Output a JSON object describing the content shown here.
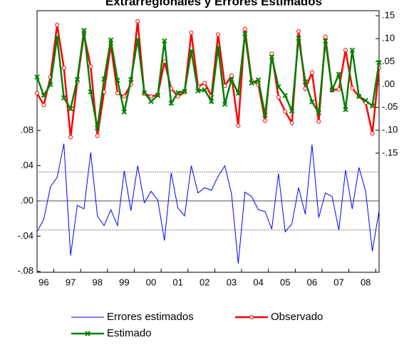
{
  "chart_data": {
    "type": "line",
    "title": "Extrarregionales y Errores Estimados",
    "categories": [
      null,
      "96",
      null,
      null,
      null,
      "97",
      null,
      null,
      null,
      "98",
      null,
      null,
      null,
      "99",
      null,
      null,
      null,
      "00",
      null,
      null,
      null,
      "01",
      null,
      null,
      null,
      "02",
      null,
      null,
      null,
      "03",
      null,
      null,
      null,
      "04",
      null,
      null,
      null,
      "05",
      null,
      null,
      null,
      "06",
      null,
      null,
      null,
      "07",
      null,
      null,
      null,
      "08",
      null,
      null
    ],
    "series": [
      {
        "name": "Errores estimados",
        "color": "#0000ff",
        "marker": "none",
        "values": [
          -0.035,
          -0.021,
          0.016,
          0.027,
          0.065,
          -0.062,
          -0.005,
          -0.009,
          0.055,
          -0.017,
          -0.028,
          -0.01,
          -0.028,
          0.034,
          -0.011,
          0.04,
          -0.002,
          0.011,
          0.001,
          -0.045,
          0.032,
          -0.008,
          -0.017,
          0.04,
          0.009,
          0.015,
          0.012,
          0.028,
          0.04,
          0.008,
          -0.071,
          0.01,
          0.005,
          -0.01,
          -0.012,
          -0.032,
          0.031,
          -0.035,
          -0.026,
          0.015,
          -0.015,
          0.064,
          -0.019,
          0.009,
          0.005,
          -0.033,
          0.035,
          -0.009,
          0.038,
          0.011,
          -0.057,
          -0.011
        ]
      },
      {
        "name": "Observado",
        "color": "#ff0000",
        "marker": "circle",
        "axis": "y2",
        "values": [
          -0.019,
          -0.045,
          0.016,
          0.13,
          0.036,
          -0.115,
          0.006,
          0.109,
          0.039,
          -0.112,
          -0.016,
          0.087,
          -0.019,
          -0.026,
          0,
          0.138,
          -0.02,
          -0.026,
          -0.023,
          0.05,
          -0.009,
          -0.026,
          -0.017,
          0.113,
          -0.005,
          0.003,
          -0.025,
          0.109,
          -0.003,
          0.019,
          -0.09,
          0.121,
          0.008,
          0,
          -0.079,
          0.067,
          -0.028,
          -0.059,
          -0.084,
          0.116,
          -0.009,
          0.026,
          -0.081,
          0.104,
          -0.012,
          -0.011,
          0.075,
          -0.008,
          -0.026,
          -0.04,
          -0.107,
          0.037
        ]
      },
      {
        "name": "Estimado",
        "color": "#008000",
        "marker": "x",
        "axis": "y2",
        "values": [
          0.016,
          -0.024,
          0,
          0.103,
          -0.029,
          -0.053,
          0.011,
          0.118,
          -0.016,
          -0.095,
          0.012,
          0.097,
          0.009,
          -0.06,
          0.011,
          0.098,
          -0.018,
          -0.037,
          -0.024,
          0.095,
          -0.041,
          -0.018,
          -0.015,
          0.073,
          -0.014,
          -0.012,
          -0.037,
          0.081,
          -0.043,
          0.011,
          -0.019,
          0.111,
          0.003,
          0.01,
          -0.067,
          0.06,
          -0.005,
          -0.024,
          -0.058,
          0.101,
          0.006,
          -0.038,
          -0.062,
          0.095,
          -0.012,
          0.022,
          -0.055,
          0.075,
          -0.026,
          -0.035,
          -0.047,
          0.048
        ]
      }
    ],
    "ylim": [
      -0.081,
      0.216
    ],
    "yticks": [
      {
        "value": -0.08,
        "label": "-.08"
      },
      {
        "value": -0.04,
        "label": "-.04"
      },
      {
        "value": 0,
        "label": ".00"
      },
      {
        "value": 0.04,
        "label": ".04"
      },
      {
        "value": 0.08,
        "label": ".08"
      }
    ],
    "y2lim": [
      -0.41,
      0.161
    ],
    "y2ticks": [
      {
        "value": -0.15,
        "label": "-.15"
      },
      {
        "value": -0.1,
        "label": "-.10"
      },
      {
        "value": -0.05,
        "label": "-.05"
      },
      {
        "value": 0,
        "label": ".00"
      },
      {
        "value": 0.05,
        "label": ".05"
      },
      {
        "value": 0.1,
        "label": ".10"
      },
      {
        "value": 0.15,
        "label": ".15"
      }
    ],
    "reference_lines": [
      -0.033,
      0,
      0.033
    ]
  }
}
